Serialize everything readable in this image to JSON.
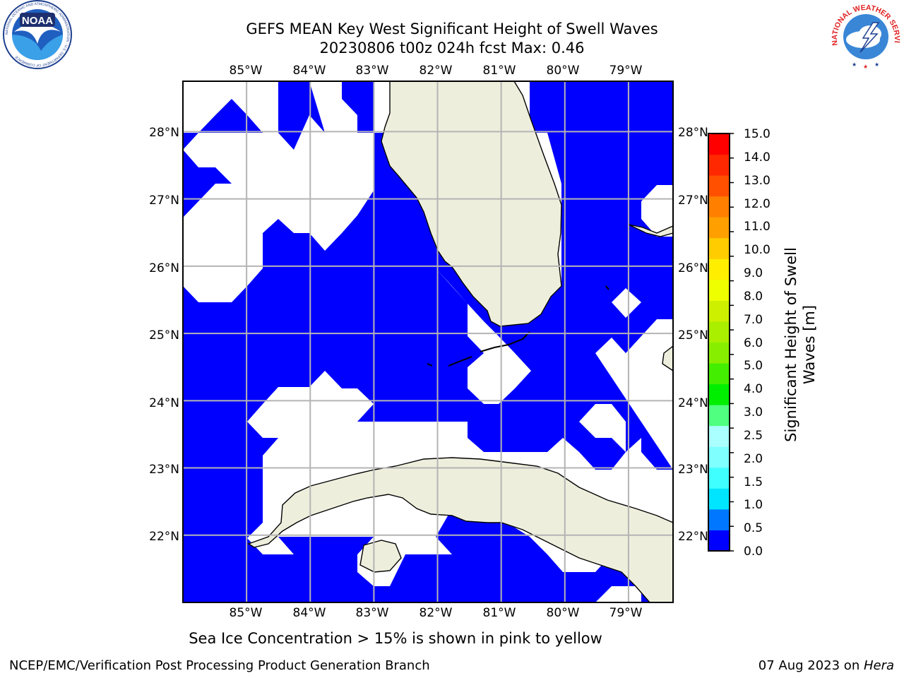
{
  "title": {
    "line1": "GEFS MEAN Key West Significant Height of Swell Waves",
    "line2": "20230806 t00z 024h fcst   Max: 0.46"
  },
  "logos": {
    "noaa_text": "NOAA",
    "noaa_ring": "NATIONAL OCEANIC AND ATMOSPHERIC ADMINISTRATION · U.S. DEPARTMENT OF COMMERCE",
    "nws_ring": "NATIONAL WEATHER SERVICE"
  },
  "map": {
    "lon_range": [
      -86.0,
      -78.3
    ],
    "lat_range": [
      21.0,
      28.75
    ],
    "lon_ticks": [
      "85°W",
      "84°W",
      "83°W",
      "82°W",
      "81°W",
      "80°W",
      "79°W"
    ],
    "lat_ticks": [
      "28°N",
      "27°N",
      "26°N",
      "25°N",
      "24°N",
      "23°N",
      "22°N"
    ],
    "colors": {
      "swell_low": "#0000ff",
      "land": "#eeeedd",
      "grid": "#b4b4b4",
      "coast": "#000000"
    }
  },
  "colorbar": {
    "label": "Significant Height of Swell Waves [m]",
    "label_line1": "Significant Height of Swell",
    "label_line2": "Waves [m]",
    "levels": [
      "0.0",
      "0.5",
      "1.0",
      "1.5",
      "2.0",
      "2.5",
      "3.0",
      "4.0",
      "5.0",
      "6.0",
      "7.0",
      "8.0",
      "9.0",
      "10.0",
      "11.0",
      "12.0",
      "13.0",
      "14.0",
      "15.0"
    ],
    "colors": [
      "#0000ff",
      "#0077ff",
      "#00e5ff",
      "#40ffff",
      "#80ffff",
      "#aaffff",
      "#50ff80",
      "#00ee00",
      "#44ee00",
      "#88ee00",
      "#aaee00",
      "#ccf000",
      "#eeff00",
      "#ffee00",
      "#ffcc00",
      "#ffa000",
      "#ff8000",
      "#ff5000",
      "#ff2800",
      "#ff0000"
    ]
  },
  "note": "Sea Ice Concentration > 15% is shown in pink to yellow",
  "footer": {
    "left": "NCEP/EMC/Verification Post Processing Product Generation Branch",
    "right_date": "07 Aug 2023 on ",
    "right_host": "Hera"
  }
}
